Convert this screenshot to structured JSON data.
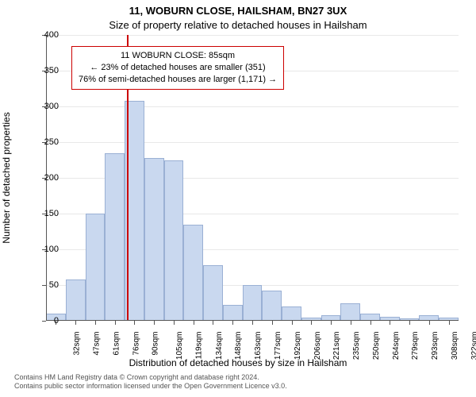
{
  "title_main": "11, WOBURN CLOSE, HAILSHAM, BN27 3UX",
  "title_sub": "Size of property relative to detached houses in Hailsham",
  "ylabel": "Number of detached properties",
  "xlabel": "Distribution of detached houses by size in Hailsham",
  "footer_line1": "Contains HM Land Registry data © Crown copyright and database right 2024.",
  "footer_line2": "Contains public sector information licensed under the Open Government Licence v3.0.",
  "annotation": {
    "line1": "11 WOBURN CLOSE: 85sqm",
    "line2": "← 23% of detached houses are smaller (351)",
    "line3": "76% of semi-detached houses are larger (1,171) →"
  },
  "chart": {
    "type": "histogram",
    "ylim": [
      0,
      400
    ],
    "ytick_step": 50,
    "bar_color": "#c9d8ef",
    "bar_border": "#9ab0d4",
    "grid_color": "#e8e8e8",
    "axis_color": "#555555",
    "marker_color": "#cc0000",
    "marker_x": 85,
    "x_start": 25,
    "x_step": 14.5,
    "categories": [
      "32sqm",
      "47sqm",
      "61sqm",
      "76sqm",
      "90sqm",
      "105sqm",
      "119sqm",
      "134sqm",
      "148sqm",
      "163sqm",
      "177sqm",
      "192sqm",
      "206sqm",
      "221sqm",
      "235sqm",
      "250sqm",
      "264sqm",
      "279sqm",
      "293sqm",
      "308sqm",
      "322sqm"
    ],
    "values": [
      10,
      58,
      150,
      235,
      308,
      228,
      225,
      135,
      78,
      22,
      50,
      42,
      20,
      5,
      8,
      25,
      10,
      6,
      3,
      8,
      5
    ],
    "bar_width_ratio": 1.0,
    "title_fontsize": 13,
    "label_fontsize": 12,
    "tick_fontsize": 11
  }
}
